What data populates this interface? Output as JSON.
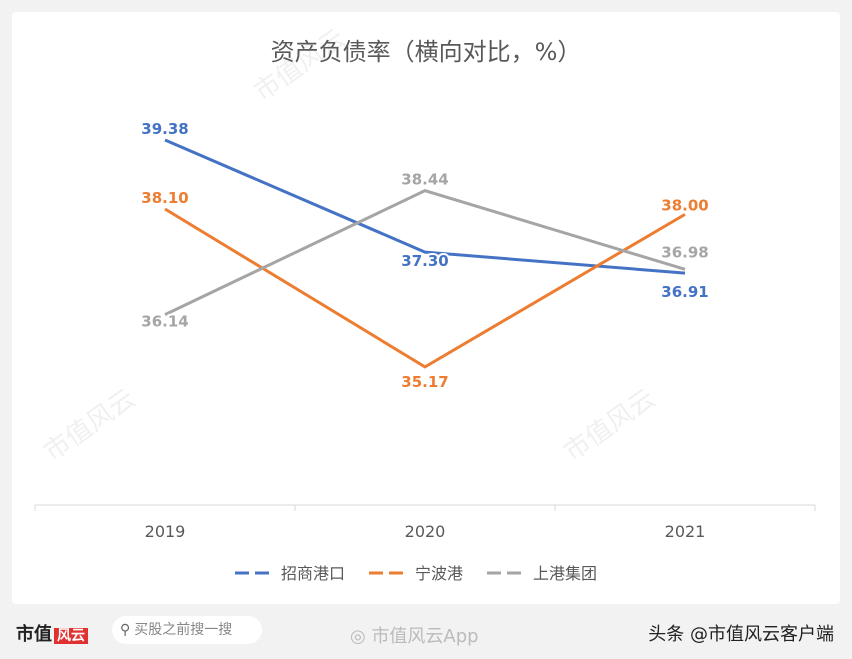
{
  "chart_data": {
    "type": "line",
    "title": "资产负债率（横向对比，%）",
    "categories": [
      "2019",
      "2020",
      "2021"
    ],
    "series": [
      {
        "name": "招商港口",
        "values": [
          39.38,
          37.3,
          36.91
        ],
        "color": "#4472c4"
      },
      {
        "name": "宁波港",
        "values": [
          38.1,
          35.17,
          38.0
        ],
        "color": "#ed7d31"
      },
      {
        "name": "上港集团",
        "values": [
          36.14,
          38.44,
          36.98
        ],
        "color": "#a5a5a5"
      }
    ],
    "data_labels": true,
    "grid": false,
    "legend": "bottom",
    "y_axis_visible": false
  },
  "watermark": "市值风云",
  "footer": {
    "logo": "市值风云",
    "search_placeholder": "买股之前搜一搜",
    "weibo": "市值风云App",
    "toutiao": "头条 @市值风云客户端"
  }
}
